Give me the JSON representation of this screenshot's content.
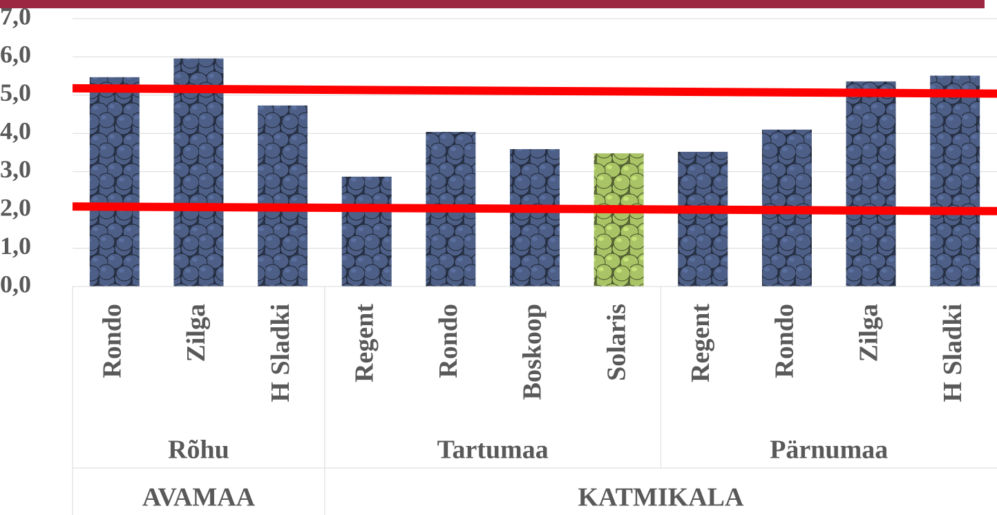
{
  "chart_data": {
    "type": "bar",
    "categories": [
      "Rondo",
      "Zilga",
      "H Sladki",
      "Regent",
      "Rondo",
      "Boskoop",
      "Solaris",
      "Regent",
      "Rondo",
      "Zilga",
      "H Sladki"
    ],
    "values": [
      5.47,
      5.96,
      4.73,
      2.87,
      4.04,
      3.59,
      3.48,
      3.52,
      4.1,
      5.36,
      5.51
    ],
    "colors": [
      "#4d5f86",
      "#4d5f86",
      "#4d5f86",
      "#4d5f86",
      "#4d5f86",
      "#4d5f86",
      "#a9c466",
      "#4d5f86",
      "#4d5f86",
      "#4d5f86",
      "#4d5f86"
    ],
    "groups": [
      {
        "name": "Rõhu",
        "span": 3
      },
      {
        "name": "Tartumaa",
        "span": 4
      },
      {
        "name": "Pärnumaa",
        "span": 4
      }
    ],
    "supergroups": [
      {
        "name": "AVAMAA",
        "span": 3
      },
      {
        "name": "KATMIKALA",
        "span": 8
      }
    ],
    "ylim": [
      0,
      7
    ],
    "yticks": [
      {
        "value": 0,
        "label": "0,0"
      },
      {
        "value": 1,
        "label": "1,0"
      },
      {
        "value": 2,
        "label": "2,0"
      },
      {
        "value": 3,
        "label": "3,0"
      },
      {
        "value": 4,
        "label": "4,0"
      },
      {
        "value": 5,
        "label": "5,0"
      },
      {
        "value": 6,
        "label": "6,0"
      },
      {
        "value": 7,
        "label": "7,0"
      }
    ],
    "grid": true,
    "reference_lines": [
      {
        "start": 5.18,
        "end": 5.04,
        "color": "#ff0000"
      },
      {
        "start": 2.09,
        "end": 1.97,
        "color": "#ff0000"
      }
    ]
  }
}
